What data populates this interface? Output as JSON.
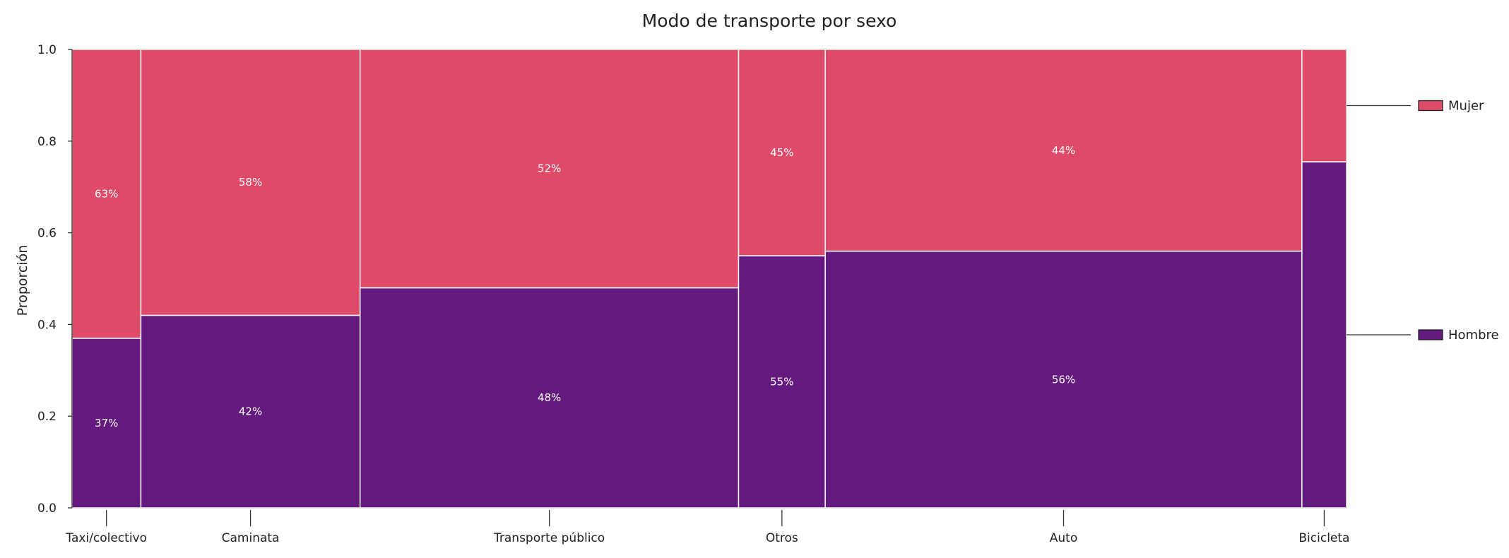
{
  "chart_data": {
    "type": "mosaic",
    "title": "Modo de transporte por sexo",
    "xlabel": "",
    "ylabel": "Proporción",
    "ylim": [
      0,
      1
    ],
    "yticks": [
      "0.0",
      "0.2",
      "0.4",
      "0.6",
      "0.8",
      "1.0"
    ],
    "categories": [
      "Taxi/colectivo",
      "Caminata",
      "Transporte público",
      "Otros",
      "Auto",
      "Bicicleta"
    ],
    "category_widths": [
      0.054,
      0.172,
      0.297,
      0.068,
      0.374,
      0.035
    ],
    "series": [
      {
        "name": "Hombre",
        "color": "#63197d",
        "values": [
          0.37,
          0.42,
          0.48,
          0.55,
          0.56,
          0.755
        ],
        "labels": [
          "37%",
          "42%",
          "48%",
          "55%",
          "56%",
          ""
        ]
      },
      {
        "name": "Mujer",
        "color": "#de4a68",
        "values": [
          0.63,
          0.58,
          0.52,
          0.45,
          0.44,
          0.245
        ],
        "labels": [
          "63%",
          "58%",
          "52%",
          "45%",
          "44%",
          ""
        ]
      }
    ],
    "legend": {
      "placement": "right",
      "entries": [
        "Mujer",
        "Hombre"
      ]
    }
  }
}
